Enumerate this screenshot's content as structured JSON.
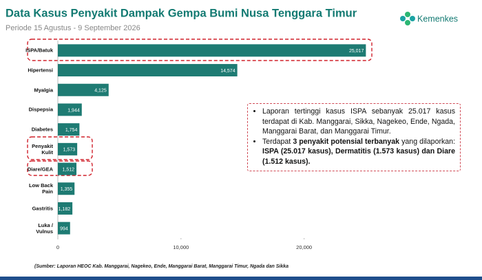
{
  "header": {
    "title": "Data Kasus Penyakit Dampak Gempa Bumi Nusa Tenggara Timur",
    "subtitle": "Periode 15 Agustus - 9 September 2026",
    "logo": "Kemenkes"
  },
  "chart_data": {
    "type": "bar",
    "orientation": "horizontal",
    "categories": [
      "ISPA/Batuk",
      "Hipertensi",
      "Myalgia",
      "Dispepsia",
      "Diabetes",
      "Penyakit\nKulit",
      "Diare/GEA",
      "Low Back\nPain",
      "Gastritis",
      "Luka /\nVulnus"
    ],
    "values": [
      25017,
      14574,
      4125,
      1944,
      1754,
      1573,
      1512,
      1355,
      1182,
      994
    ],
    "value_labels": [
      "25,017",
      "14,574",
      "4,125",
      "1,944",
      "1,754",
      "1,573",
      "1,512",
      "1,355",
      "1,182",
      "994"
    ],
    "color": "#1e7b73",
    "xlim": [
      0,
      25500
    ],
    "xticks": [
      0,
      {
        "value": 10000,
        "label": "10,000"
      },
      {
        "value": 20000,
        "label": "20,000"
      }
    ]
  },
  "note": {
    "bullets": [
      [
        "Laporan tertinggi kasus ISPA sebanyak 25.017 kasus terdapat di Kab. Manggarai, Sikka, Nagekeo, Ende, Ngada, Manggarai Barat, dan Manggarai Timur."
      ],
      [
        "Terdapat ",
        "3 penyakit potensial terbanyak",
        " yang dilaporkan: ",
        "ISPA (25.017 kasus), Dermatitis (1.573 kasus) dan Diare (1.512 kasus)."
      ]
    ]
  },
  "source": "(Sumber: Laporan HEOC Kab. Manggarai, Nagekeo, Ende, Manggarai Barat, Manggarai Timur, Ngada dan Sikka"
}
